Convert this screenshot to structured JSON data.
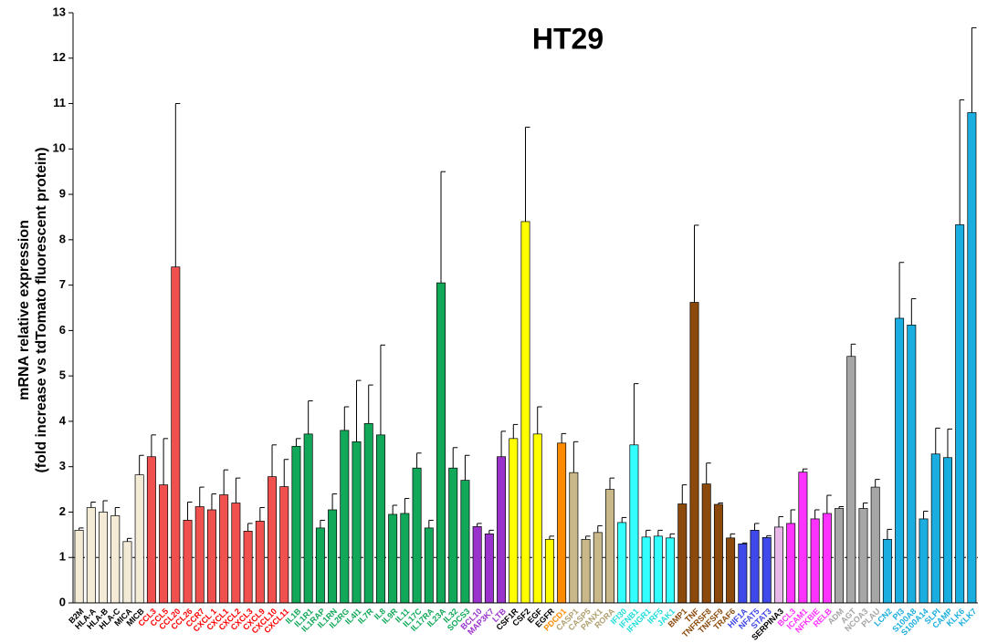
{
  "chart_data": {
    "type": "bar",
    "title": "HT29",
    "ylabel": [
      "mRNA relative expression",
      "(fold increase vs tdTomato fluorescent protein)"
    ],
    "categories": [
      "B2M",
      "HLA-A",
      "HLA-B",
      "HLA-C",
      "MICA",
      "MICB",
      "CCL3",
      "CCL5",
      "CCL20",
      "CCL26",
      "CCR7",
      "CXCL 1",
      "CXCL1",
      "CXCL2",
      "CXCL3",
      "CXCL9",
      "CXCL10",
      "CXCL11",
      "IL1B",
      "IL1R1",
      "IL1RAP",
      "IL1RN",
      "IL2RG",
      "IL4I1",
      "IL7R",
      "IL8",
      "IL9R",
      "IL11",
      "IL17C",
      "IL17RA",
      "IL23A",
      "IL32",
      "SOCS3",
      "BCL10",
      "MAP3K7",
      "LTB",
      "CSF1R",
      "CSF2",
      "EGF",
      "EGFR",
      "PDCD1",
      "CASP1",
      "CASP5",
      "PANX1",
      "RORA",
      "IFI30",
      "IFNB1",
      "IFNGR1",
      "IRF5",
      "JAK1",
      "BMP1",
      "TNF",
      "TNFRSF8",
      "TNFSF9",
      "TRAF6",
      "HIF1A",
      "NFAT5",
      "STAT3",
      "SERPINA3",
      "BCL3",
      "ICAM1",
      "NFKBIE",
      "RELB",
      "ADM",
      "AGT",
      "NCOA3",
      "PLAU",
      "LCN2",
      "PI3",
      "S100A8",
      "S100A14",
      "SLPI",
      "CAMP",
      "KLK6",
      "KLK7"
    ],
    "values": [
      1.6,
      2.1,
      2.0,
      1.92,
      1.35,
      2.82,
      3.22,
      2.6,
      7.4,
      1.82,
      2.12,
      2.05,
      2.38,
      2.2,
      1.58,
      1.8,
      2.78,
      2.56,
      3.45,
      3.72,
      1.65,
      2.05,
      3.8,
      3.55,
      3.95,
      3.7,
      1.95,
      1.97,
      2.97,
      1.65,
      7.05,
      2.97,
      2.7,
      1.68,
      1.52,
      3.22,
      3.62,
      8.4,
      3.72,
      1.4,
      3.52,
      2.87,
      1.4,
      1.55,
      2.5,
      1.77,
      3.48,
      1.45,
      1.47,
      1.43,
      2.18,
      6.62,
      2.62,
      2.17,
      1.43,
      1.3,
      1.6,
      1.44,
      1.67,
      1.75,
      2.88,
      1.85,
      1.97,
      2.08,
      5.43,
      2.08,
      2.55,
      1.4,
      6.27,
      6.12,
      1.85,
      3.28,
      3.2,
      8.33,
      10.8
    ],
    "errors": [
      0.05,
      0.12,
      0.25,
      0.18,
      0.07,
      0.43,
      0.48,
      1.02,
      3.6,
      0.4,
      0.43,
      0.35,
      0.55,
      0.55,
      0.17,
      0.3,
      0.7,
      0.6,
      0.17,
      0.73,
      0.17,
      0.35,
      0.52,
      1.35,
      0.85,
      1.98,
      0.2,
      0.33,
      0.33,
      0.17,
      2.45,
      0.45,
      0.55,
      0.07,
      0.08,
      0.56,
      0.31,
      2.08,
      0.6,
      0.07,
      0.21,
      0.68,
      0.07,
      0.15,
      0.25,
      0.11,
      1.35,
      0.15,
      0.13,
      0.09,
      0.42,
      1.7,
      0.46,
      0.03,
      0.09,
      0.02,
      0.15,
      0.04,
      0.23,
      0.3,
      0.07,
      0.2,
      0.4,
      0.04,
      0.27,
      0.12,
      0.17,
      0.22,
      1.23,
      0.58,
      0.17,
      0.57,
      0.63,
      2.75,
      1.87
    ],
    "colors": [
      "#f3ebd6",
      "#f3ebd6",
      "#f3ebd6",
      "#f3ebd6",
      "#f3ebd6",
      "#f3ebd6",
      "#f0514f",
      "#f0514f",
      "#f0514f",
      "#f0514f",
      "#f0514f",
      "#f0514f",
      "#f0514f",
      "#f0514f",
      "#f0514f",
      "#f0514f",
      "#f0514f",
      "#f0514f",
      "#11a85a",
      "#11a85a",
      "#11a85a",
      "#11a85a",
      "#11a85a",
      "#11a85a",
      "#11a85a",
      "#11a85a",
      "#11a85a",
      "#11a85a",
      "#11a85a",
      "#11a85a",
      "#11a85a",
      "#11a85a",
      "#11a85a",
      "#9933cc",
      "#9933cc",
      "#9933cc",
      "#ffff00",
      "#ffff00",
      "#ffff00",
      "#ffff00",
      "#ff8c00",
      "#c8b88a",
      "#c8b88a",
      "#c8b88a",
      "#c8b88a",
      "#33ffff",
      "#33ffff",
      "#33ffff",
      "#33ffff",
      "#33ffff",
      "#8b4a0c",
      "#8b4a0c",
      "#8b4a0c",
      "#8b4a0c",
      "#8b4a0c",
      "#3f48e8",
      "#3f48e8",
      "#3f48e8",
      "#e8b8e8",
      "#ff33ff",
      "#ff33ff",
      "#ff33ff",
      "#ff33ff",
      "#a6a6a6",
      "#a6a6a6",
      "#a6a6a6",
      "#a6a6a6",
      "#1aaee0",
      "#1aaee0",
      "#1aaee0",
      "#1aaee0",
      "#1aaee0",
      "#1aaee0",
      "#1aaee0",
      "#1aaee0"
    ],
    "label_colors": [
      "#000000",
      "#000000",
      "#000000",
      "#000000",
      "#000000",
      "#000000",
      "#ff0000",
      "#ff0000",
      "#ff0000",
      "#ff0000",
      "#ff0000",
      "#ff0000",
      "#ff0000",
      "#ff0000",
      "#ff0000",
      "#ff0000",
      "#ff0000",
      "#ff0000",
      "#11a85a",
      "#11a85a",
      "#11a85a",
      "#11a85a",
      "#11a85a",
      "#11a85a",
      "#11a85a",
      "#11a85a",
      "#11a85a",
      "#11a85a",
      "#11a85a",
      "#11a85a",
      "#11a85a",
      "#11a85a",
      "#11a85a",
      "#9933cc",
      "#9933cc",
      "#9933cc",
      "#000000",
      "#000000",
      "#000000",
      "#000000",
      "#ff8c00",
      "#b0a070",
      "#b0a070",
      "#b0a070",
      "#b0a070",
      "#22dddd",
      "#22dddd",
      "#22dddd",
      "#22dddd",
      "#22dddd",
      "#8b4a0c",
      "#8b4a0c",
      "#8b4a0c",
      "#8b4a0c",
      "#8b4a0c",
      "#3f48e8",
      "#3f48e8",
      "#3f48e8",
      "#000000",
      "#ff33ff",
      "#ff33ff",
      "#ff33ff",
      "#ff33ff",
      "#a6a6a6",
      "#a6a6a6",
      "#a6a6a6",
      "#a6a6a6",
      "#1aaee0",
      "#1aaee0",
      "#1aaee0",
      "#1aaee0",
      "#1aaee0",
      "#1aaee0",
      "#1aaee0",
      "#1aaee0"
    ],
    "reference_line": 1,
    "ylim": [
      0,
      13
    ],
    "yticks": [
      0,
      1,
      2,
      3,
      4,
      5,
      6,
      7,
      8,
      9,
      10,
      11,
      12,
      13
    ]
  }
}
